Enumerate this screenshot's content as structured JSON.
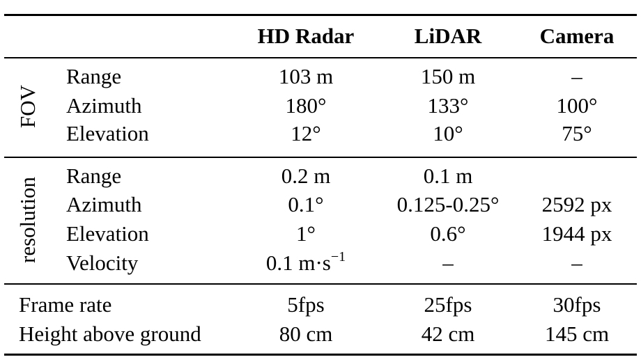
{
  "columns": {
    "col1": "HD Radar",
    "col2": "LiDAR",
    "col3": "Camera"
  },
  "groups": {
    "fov": {
      "label": "FOV",
      "rows": [
        {
          "label": "Range",
          "radar": "103 m",
          "lidar": "150 m",
          "camera": "–"
        },
        {
          "label": "Azimuth",
          "radar": "180°",
          "lidar": "133°",
          "camera": "100°"
        },
        {
          "label": "Elevation",
          "radar": "12°",
          "lidar": "10°",
          "camera": "75°"
        }
      ]
    },
    "resolution": {
      "label": "resolution",
      "rows": [
        {
          "label": "Range",
          "radar": "0.2 m",
          "lidar": "0.1 m",
          "camera": ""
        },
        {
          "label": "Azimuth",
          "radar": "0.1°",
          "lidar": "0.125-0.25°",
          "camera": "2592 px"
        },
        {
          "label": "Elevation",
          "radar": "1°",
          "lidar": "0.6°",
          "camera": "1944 px"
        },
        {
          "label": "Velocity",
          "radar_base": "0.1 m·s",
          "radar_exp": "−1",
          "lidar": "–",
          "camera": "–"
        }
      ]
    }
  },
  "other": [
    {
      "label": "Frame rate",
      "radar": "5fps",
      "lidar": "25fps",
      "camera": "30fps"
    },
    {
      "label": "Height above ground",
      "radar": "80 cm",
      "lidar": "42 cm",
      "camera": "145 cm"
    }
  ]
}
